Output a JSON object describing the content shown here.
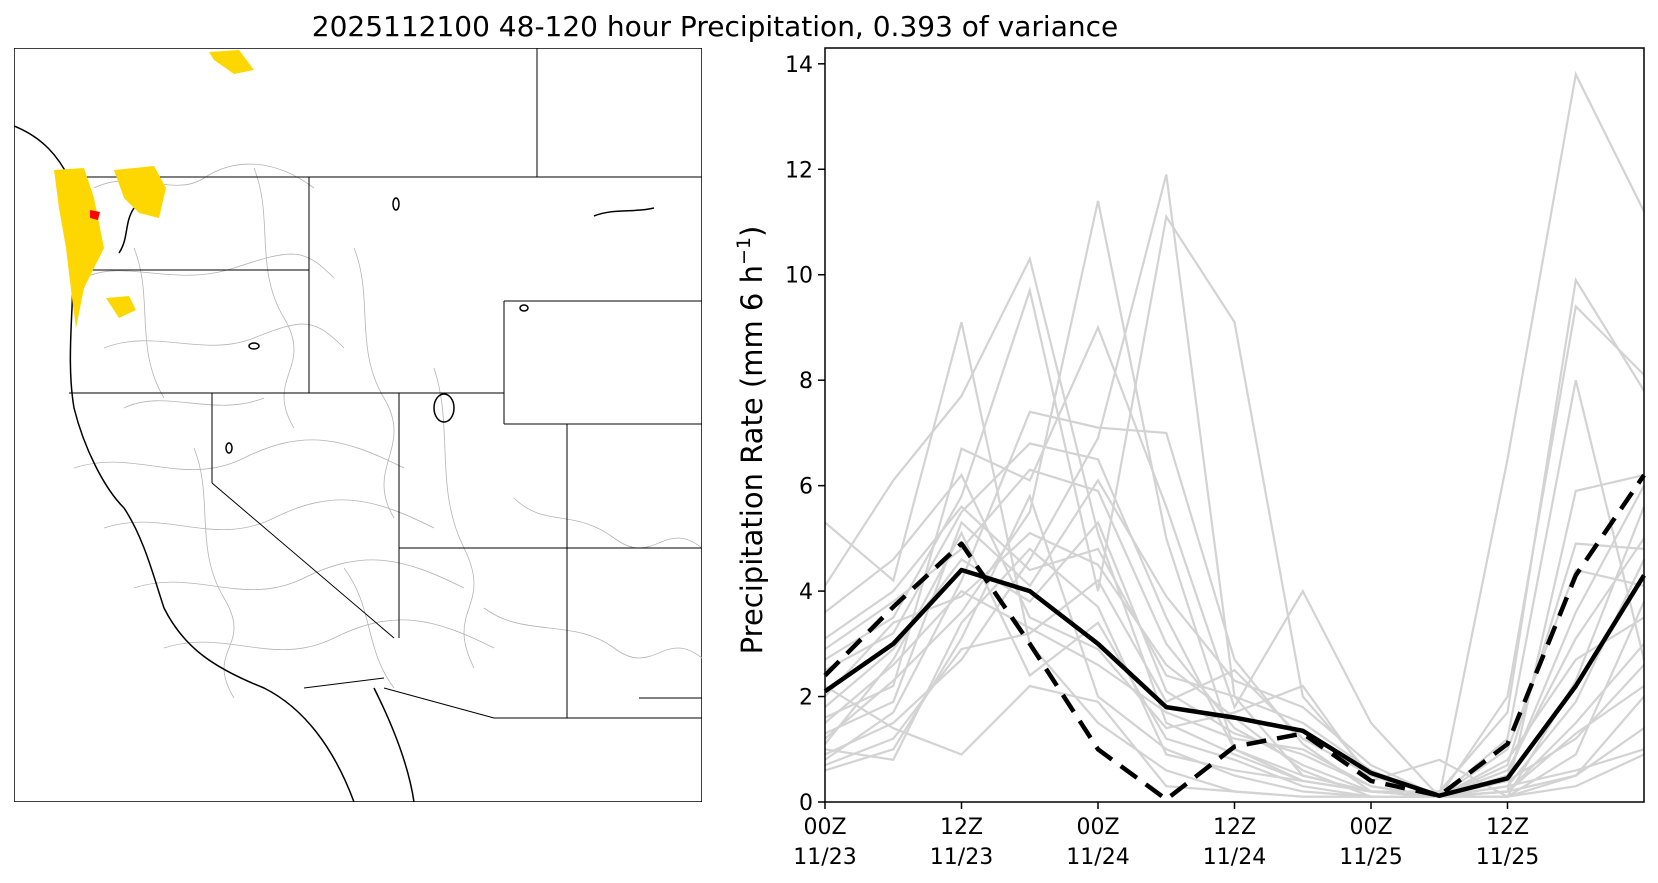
{
  "title": "2025112100 48-120 hour Precipitation, 0.393 of variance",
  "colors": {
    "highlight_region": "#FFD700",
    "hot_region": "#FF0000",
    "basin_lines": "#b4b4b4",
    "member_lines": "#d3d3d3",
    "mean_line": "#000000"
  },
  "map": {
    "description_icon": "regional-basin-map"
  },
  "chart_data": {
    "type": "line",
    "title": "",
    "xlabel": "",
    "ylabel": "Precipitation Rate (mm 6 h",
    "ylabel_sup": "−1",
    "ylabel_end": ")",
    "x": [
      0,
      1,
      2,
      3,
      4,
      5,
      6,
      7,
      8,
      9,
      10,
      11,
      12
    ],
    "xlim": [
      0,
      12
    ],
    "ylim": [
      0,
      14.3
    ],
    "x_ticks": [
      {
        "x": 0,
        "line1": "00Z",
        "line2": "11/23"
      },
      {
        "x": 2,
        "line1": "12Z",
        "line2": "11/23"
      },
      {
        "x": 4,
        "line1": "00Z",
        "line2": "11/24"
      },
      {
        "x": 6,
        "line1": "12Z",
        "line2": "11/24"
      },
      {
        "x": 8,
        "line1": "00Z",
        "line2": "11/25"
      },
      {
        "x": 10,
        "line1": "12Z",
        "line2": "11/25"
      }
    ],
    "y_ticks": [
      0,
      2,
      4,
      6,
      8,
      10,
      12,
      14
    ],
    "series": [
      {
        "name": "mean",
        "style": "solid",
        "values": [
          2.1,
          3.0,
          4.4,
          4.0,
          3.0,
          1.8,
          1.6,
          1.35,
          0.55,
          0.12,
          0.45,
          2.2,
          4.3
        ]
      },
      {
        "name": "deterministic",
        "style": "dashed",
        "values": [
          2.4,
          3.7,
          4.9,
          3.0,
          1.0,
          0.05,
          1.05,
          1.3,
          0.4,
          0.12,
          1.1,
          4.3,
          6.2
        ]
      }
    ],
    "members": [
      [
        5.3,
        4.2,
        9.1,
        3.0,
        1.5,
        0.6,
        0.2,
        0.1,
        0.1,
        0.1,
        0.3,
        0.6,
        1.0
      ],
      [
        4.1,
        6.1,
        7.7,
        10.3,
        5.1,
        1.5,
        0.9,
        0.4,
        0.2,
        0.1,
        6.5,
        13.8,
        11.2
      ],
      [
        1.2,
        2.3,
        3.6,
        5.5,
        11.4,
        5.0,
        1.0,
        0.5,
        0.2,
        0.1,
        0.2,
        1.5,
        3.0
      ],
      [
        0.9,
        1.5,
        2.7,
        4.6,
        6.9,
        11.9,
        2.0,
        0.5,
        0.2,
        0.1,
        0.1,
        0.9,
        3.8
      ],
      [
        2.7,
        3.5,
        5.8,
        9.7,
        4.0,
        11.1,
        9.1,
        2.0,
        0.5,
        0.1,
        0.2,
        0.5,
        2.0
      ],
      [
        1.6,
        2.2,
        6.7,
        6.1,
        9.0,
        5.6,
        1.8,
        4.0,
        1.5,
        0.1,
        2.0,
        9.4,
        8.1
      ],
      [
        0.8,
        1.7,
        4.2,
        7.4,
        7.1,
        7.0,
        2.7,
        1.1,
        0.2,
        0.2,
        1.7,
        9.9,
        7.8
      ],
      [
        2.5,
        3.2,
        5.5,
        6.8,
        6.5,
        3.5,
        1.0,
        0.4,
        0.2,
        0.1,
        1.2,
        8.0,
        2.7
      ],
      [
        1.3,
        1.9,
        5.3,
        4.1,
        6.1,
        3.9,
        2.3,
        1.8,
        0.7,
        0.1,
        0.2,
        5.9,
        6.2
      ],
      [
        3.6,
        4.6,
        6.2,
        3.5,
        2.9,
        1.4,
        1.7,
        2.2,
        0.4,
        0.8,
        0.1,
        2.3,
        5.6
      ],
      [
        2.0,
        3.4,
        3.9,
        5.1,
        4.5,
        2.6,
        1.6,
        0.6,
        0.1,
        0.1,
        1.0,
        4.4,
        4.1
      ],
      [
        1.1,
        2.7,
        5.1,
        2.4,
        3.4,
        1.2,
        0.8,
        0.3,
        0.1,
        0.1,
        0.6,
        3.1,
        5.0
      ],
      [
        0.6,
        1.0,
        3.1,
        5.8,
        2.0,
        1.0,
        0.5,
        0.2,
        0.1,
        0.1,
        0.4,
        1.2,
        2.6
      ],
      [
        1.8,
        2.9,
        4.6,
        3.8,
        5.3,
        2.1,
        1.3,
        0.9,
        0.3,
        0.1,
        0.8,
        2.7,
        3.5
      ],
      [
        1.0,
        0.8,
        3.4,
        4.8,
        3.7,
        0.9,
        0.6,
        0.4,
        0.2,
        0.1,
        0.1,
        0.5,
        1.4
      ],
      [
        3.1,
        4.0,
        5.6,
        4.4,
        4.8,
        2.4,
        2.0,
        1.5,
        0.6,
        0.1,
        0.3,
        1.9,
        4.6
      ],
      [
        1.5,
        2.6,
        4.0,
        3.3,
        2.6,
        1.7,
        1.2,
        1.0,
        0.3,
        0.1,
        0.5,
        3.6,
        6.0
      ],
      [
        2.2,
        1.4,
        0.9,
        2.2,
        1.9,
        0.3,
        0.2,
        0.1,
        0.1,
        0.1,
        0.1,
        0.3,
        0.9
      ],
      [
        0.7,
        1.2,
        2.9,
        3.2,
        4.2,
        1.9,
        2.5,
        1.2,
        0.5,
        0.1,
        0.2,
        1.3,
        2.2
      ],
      [
        2.9,
        3.8,
        4.8,
        6.3,
        5.9,
        3.0,
        1.4,
        0.7,
        0.2,
        0.1,
        0.7,
        4.9,
        4.8
      ]
    ]
  }
}
